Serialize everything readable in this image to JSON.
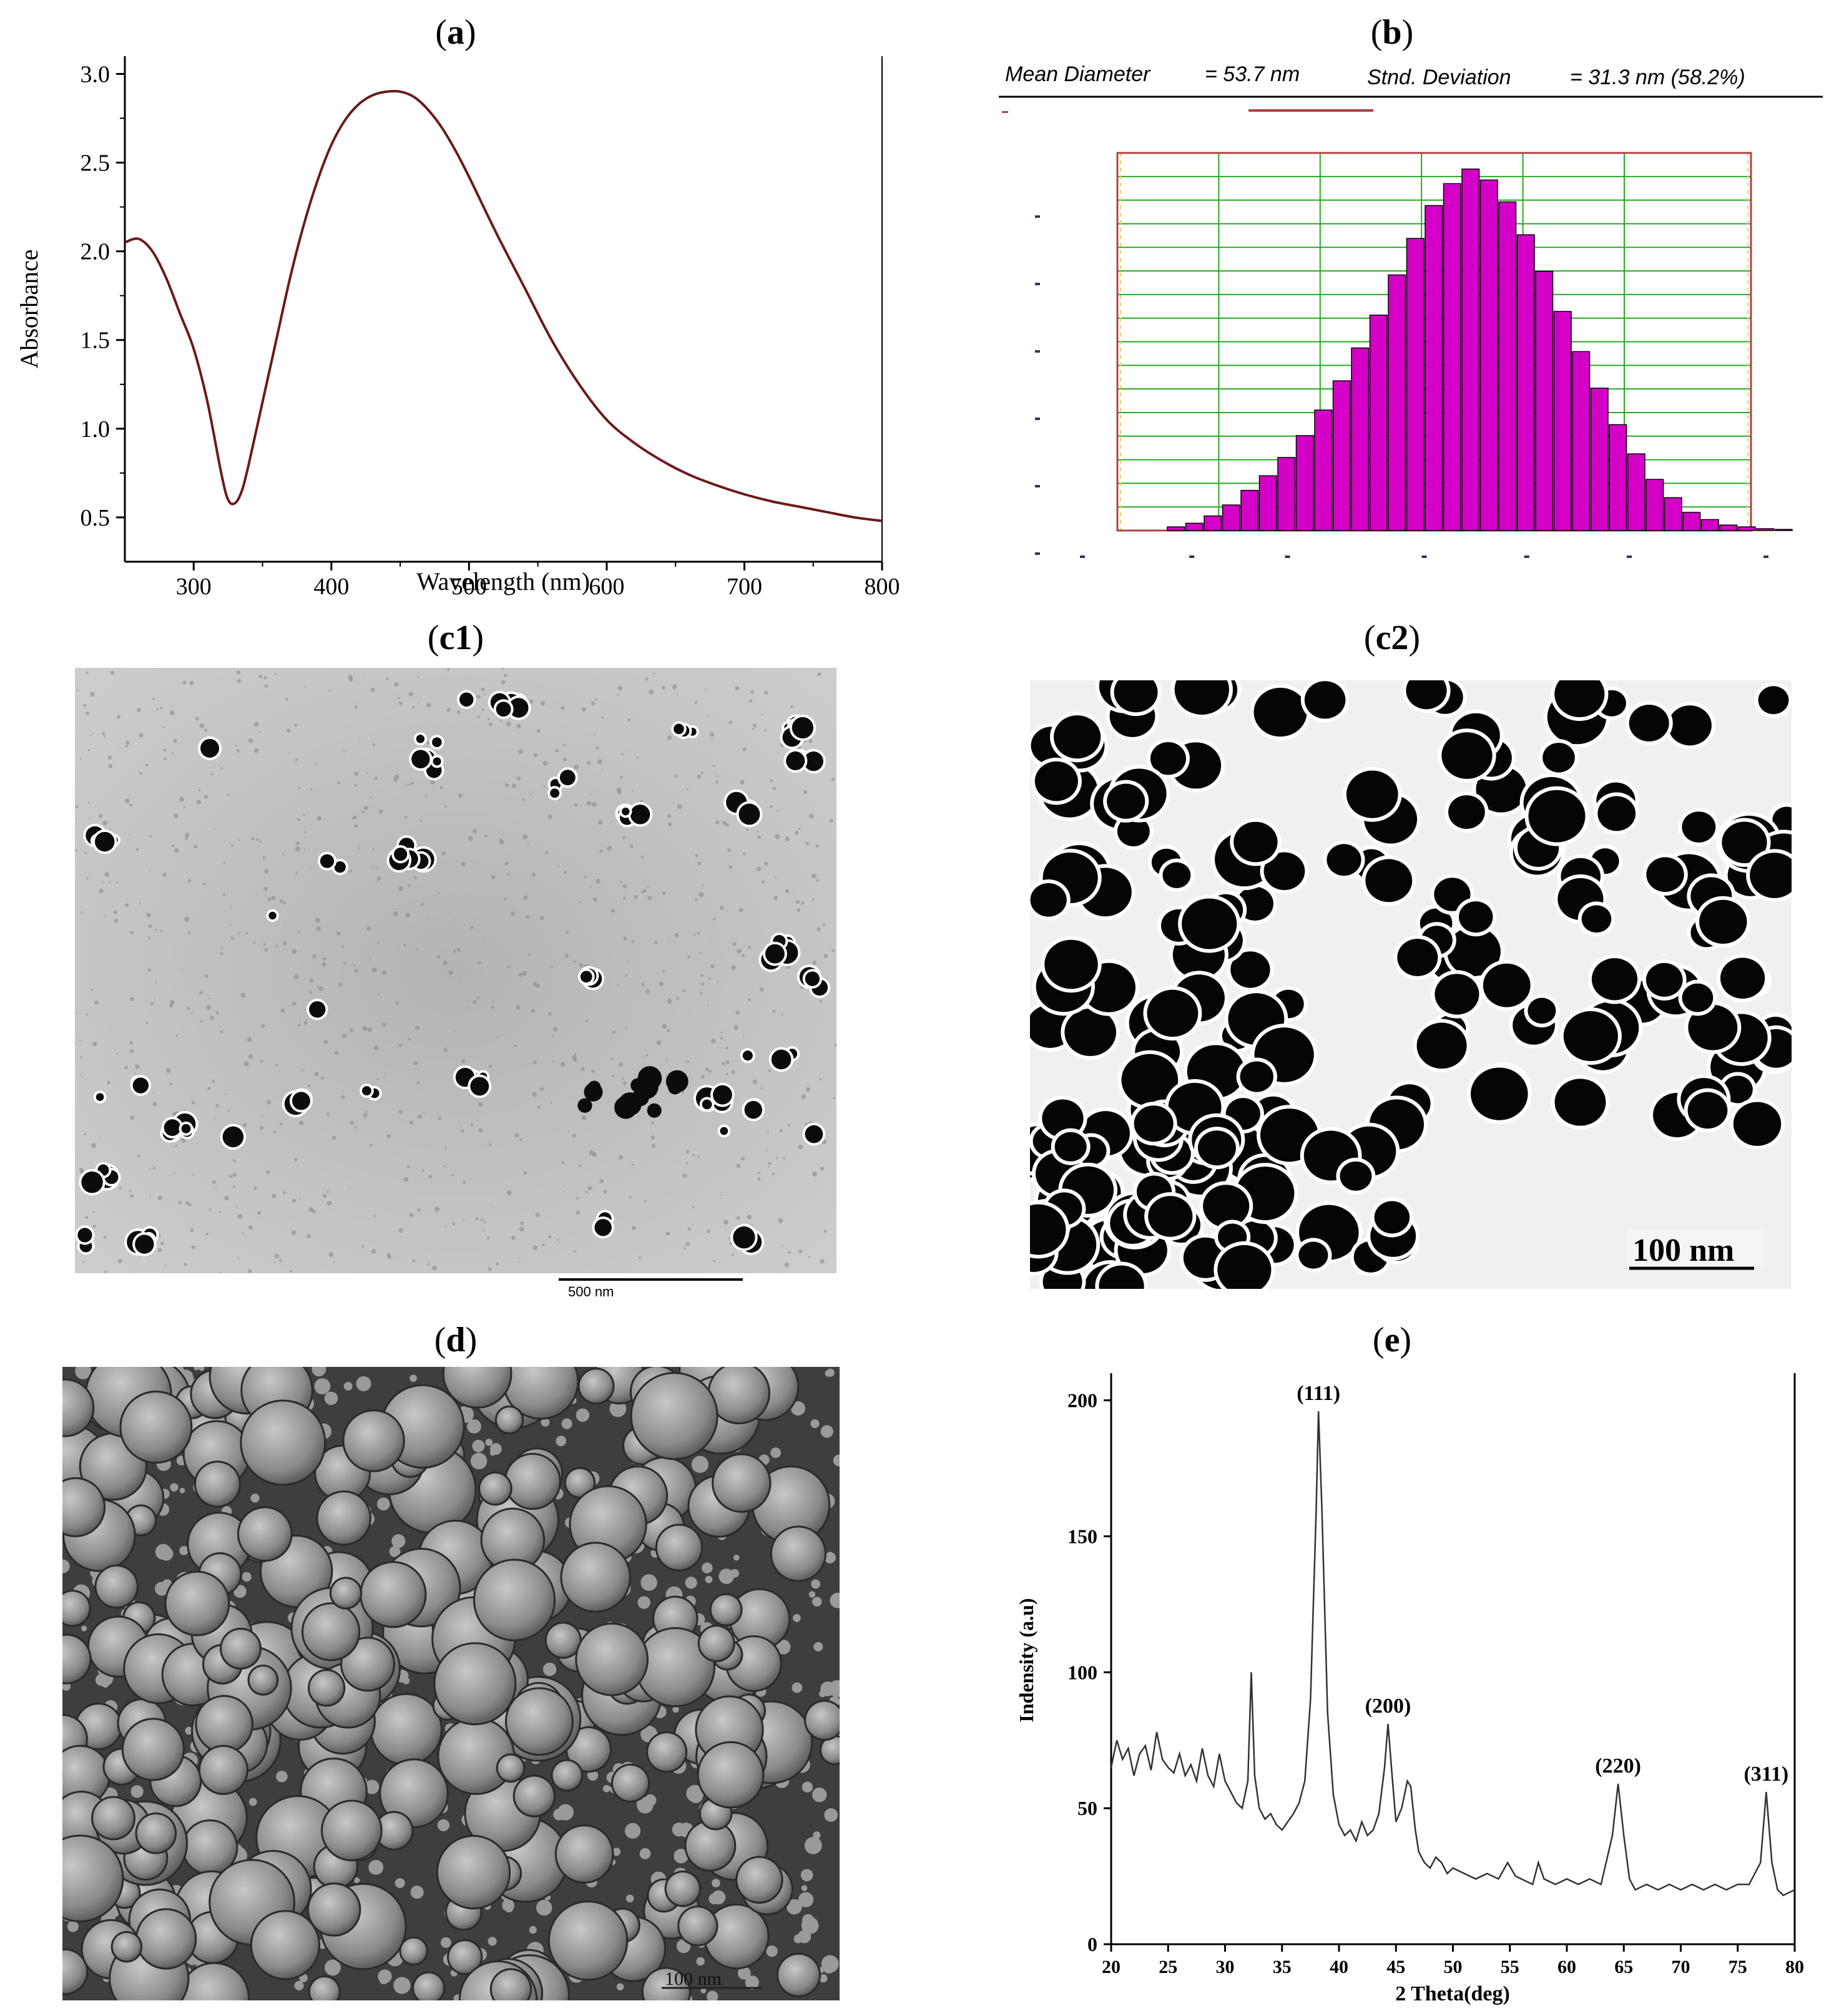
{
  "labels": {
    "a": {
      "open": "(",
      "letter": "a",
      "close": ")"
    },
    "b": {
      "open": "(",
      "letter": "b",
      "close": ")"
    },
    "c1": {
      "open": "(",
      "letter": "c1",
      "close": ")"
    },
    "c2": {
      "open": "(",
      "letter": "c2",
      "close": ")"
    },
    "d": {
      "open": "(",
      "letter": "d",
      "close": ")"
    },
    "e": {
      "open": "(",
      "letter": "e",
      "close": ")"
    }
  },
  "panel_b_header": {
    "mean_label": "Mean Diameter",
    "mean_value": "= 53.7  nm",
    "sd_label": "Stnd. Deviation",
    "sd_value": "= 31.3  nm (58.2%)"
  },
  "panel_c1": {
    "scale_label": "500 nm"
  },
  "panel_c2": {
    "scale_label": "100 nm"
  },
  "panel_d": {
    "scale_label": "100 nm"
  },
  "colors": {
    "uv_line": "#6b1a1a",
    "histogram_bar": "#d400c8",
    "grid_green": "#22aa22",
    "frame_red": "#b04040"
  },
  "chart_data": [
    {
      "id": "a",
      "type": "line",
      "xlabel": "Wavelength (nm)",
      "ylabel": "Absorbance",
      "xlim": [
        250,
        800
      ],
      "ylim": [
        0.25,
        3.1
      ],
      "xticks": [
        300,
        400,
        500,
        600,
        700,
        800
      ],
      "yticks": [
        0.5,
        1.0,
        1.5,
        2.0,
        2.5,
        3.0
      ],
      "ytick_labels": [
        "0.5",
        "1.0",
        "1.5",
        "2.0",
        "2.5",
        "3.0"
      ],
      "x": [
        250,
        260,
        270,
        280,
        290,
        300,
        310,
        320,
        325,
        330,
        335,
        340,
        350,
        360,
        370,
        380,
        390,
        400,
        410,
        420,
        430,
        440,
        450,
        460,
        470,
        480,
        490,
        500,
        520,
        540,
        560,
        580,
        600,
        620,
        640,
        660,
        680,
        700,
        720,
        740,
        760,
        780,
        800
      ],
      "y": [
        2.05,
        2.07,
        2.0,
        1.85,
        1.65,
        1.45,
        1.15,
        0.75,
        0.6,
        0.58,
        0.65,
        0.8,
        1.15,
        1.5,
        1.85,
        2.15,
        2.4,
        2.6,
        2.74,
        2.83,
        2.88,
        2.9,
        2.9,
        2.87,
        2.8,
        2.7,
        2.57,
        2.42,
        2.1,
        1.8,
        1.5,
        1.25,
        1.05,
        0.92,
        0.82,
        0.74,
        0.68,
        0.63,
        0.59,
        0.56,
        0.53,
        0.5,
        0.48
      ]
    },
    {
      "id": "b",
      "type": "bar",
      "title": "",
      "values": [
        1,
        2,
        4,
        7,
        11,
        15,
        20,
        26,
        33,
        41,
        50,
        59,
        70,
        80,
        89,
        95,
        99,
        96,
        90,
        81,
        71,
        60,
        49,
        39,
        29,
        21,
        14,
        9,
        5,
        3,
        1.5,
        1,
        0.5,
        0.3
      ],
      "ylim": [
        0,
        100
      ]
    },
    {
      "id": "e",
      "type": "line",
      "xlabel": "2 Theta(deg)",
      "ylabel": "Indensity (a.u)",
      "xlim": [
        20,
        80
      ],
      "ylim": [
        0,
        210
      ],
      "xticks": [
        20,
        25,
        30,
        35,
        40,
        45,
        50,
        55,
        60,
        65,
        70,
        75,
        80
      ],
      "yticks": [
        0,
        50,
        100,
        150,
        200
      ],
      "annotations": [
        {
          "text": "(111)",
          "x": 38.2,
          "y": 196
        },
        {
          "text": "(200)",
          "x": 44.3,
          "y": 81
        },
        {
          "text": "(220)",
          "x": 64.5,
          "y": 59
        },
        {
          "text": "(311)",
          "x": 77.5,
          "y": 56
        }
      ],
      "x": [
        20,
        20.5,
        21,
        21.5,
        22,
        22.5,
        23,
        23.5,
        24,
        24.5,
        25,
        25.5,
        26,
        26.5,
        27,
        27.5,
        28,
        28.5,
        29,
        29.5,
        30,
        30.5,
        31,
        31.5,
        32,
        32.3,
        32.6,
        33,
        33.5,
        34,
        34.5,
        35,
        35.5,
        36,
        36.5,
        37,
        37.5,
        38,
        38.2,
        38.5,
        39,
        39.5,
        40,
        40.5,
        41,
        41.5,
        42,
        42.5,
        43,
        43.5,
        44,
        44.3,
        44.7,
        45,
        45.5,
        46,
        46.3,
        46.7,
        47,
        47.5,
        48,
        48.5,
        49,
        49.5,
        50,
        51,
        52,
        53,
        54,
        54.8,
        55.5,
        56,
        57,
        57.5,
        58,
        59,
        60,
        61,
        62,
        63,
        64,
        64.5,
        65,
        65.5,
        66,
        67,
        68,
        69,
        70,
        71,
        72,
        73,
        74,
        75,
        76,
        77,
        77.5,
        78,
        78.5,
        79,
        80
      ],
      "y": [
        65,
        75,
        68,
        72,
        62,
        70,
        73,
        64,
        78,
        68,
        65,
        63,
        70,
        62,
        66,
        60,
        72,
        62,
        58,
        70,
        60,
        56,
        52,
        50,
        60,
        100,
        62,
        50,
        46,
        48,
        44,
        42,
        45,
        48,
        52,
        60,
        90,
        160,
        196,
        160,
        85,
        55,
        44,
        40,
        42,
        38,
        45,
        40,
        42,
        48,
        65,
        81,
        60,
        45,
        50,
        60,
        58,
        42,
        34,
        30,
        28,
        32,
        30,
        26,
        28,
        26,
        24,
        26,
        24,
        30,
        25,
        24,
        22,
        30,
        24,
        22,
        24,
        22,
        24,
        22,
        40,
        59,
        40,
        24,
        20,
        22,
        20,
        22,
        20,
        22,
        20,
        22,
        20,
        22,
        22,
        30,
        56,
        30,
        20,
        18,
        20
      ]
    }
  ]
}
